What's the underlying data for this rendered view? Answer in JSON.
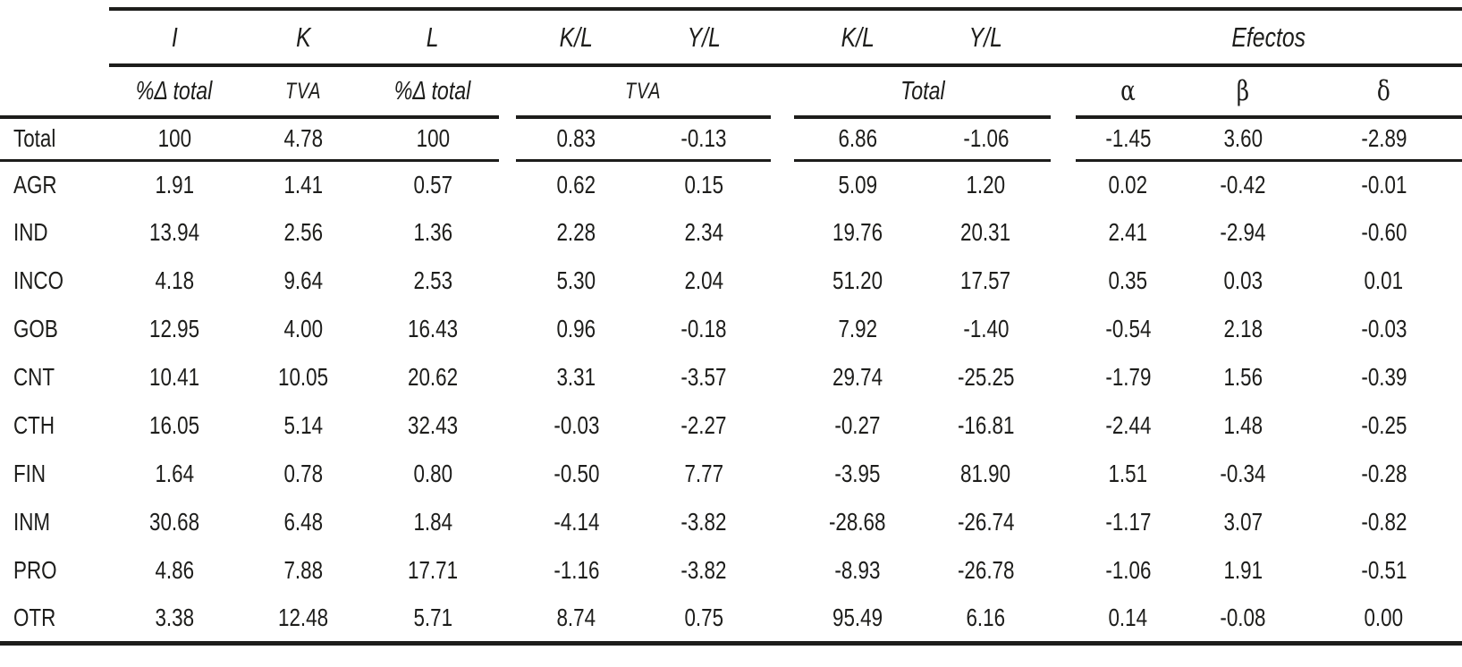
{
  "table": {
    "header_row1": {
      "i": "I",
      "k": "K",
      "l": "L",
      "kl_tva": "K/L",
      "yl_tva": "Y/L",
      "kl_total": "K/L",
      "yl_total": "Y/L",
      "efectos": "Efectos"
    },
    "header_row2": {
      "pct_delta_total_i": "%Δ total",
      "tva_k": "TVA",
      "pct_delta_total_l": "%Δ total",
      "tva_group": "TVA",
      "total_group": "Total",
      "alpha": "α",
      "beta": "β",
      "delta": "δ"
    },
    "rows": [
      {
        "label": "Total",
        "values": [
          "100",
          "4.78",
          "100",
          "0.83",
          "-0.13",
          "6.86",
          "-1.06",
          "-1.45",
          "3.60",
          "-2.89"
        ]
      },
      {
        "label": "AGR",
        "values": [
          "1.91",
          "1.41",
          "0.57",
          "0.62",
          "0.15",
          "5.09",
          "1.20",
          "0.02",
          "-0.42",
          "-0.01"
        ]
      },
      {
        "label": "IND",
        "values": [
          "13.94",
          "2.56",
          "1.36",
          "2.28",
          "2.34",
          "19.76",
          "20.31",
          "2.41",
          "-2.94",
          "-0.60"
        ]
      },
      {
        "label": "INCO",
        "values": [
          "4.18",
          "9.64",
          "2.53",
          "5.30",
          "2.04",
          "51.20",
          "17.57",
          "0.35",
          "0.03",
          "0.01"
        ]
      },
      {
        "label": "GOB",
        "values": [
          "12.95",
          "4.00",
          "16.43",
          "0.96",
          "-0.18",
          "7.92",
          "-1.40",
          "-0.54",
          "2.18",
          "-0.03"
        ]
      },
      {
        "label": "CNT",
        "values": [
          "10.41",
          "10.05",
          "20.62",
          "3.31",
          "-3.57",
          "29.74",
          "-25.25",
          "-1.79",
          "1.56",
          "-0.39"
        ]
      },
      {
        "label": "CTH",
        "values": [
          "16.05",
          "5.14",
          "32.43",
          "-0.03",
          "-2.27",
          "-0.27",
          "-16.81",
          "-2.44",
          "1.48",
          "-0.25"
        ]
      },
      {
        "label": "FIN",
        "values": [
          "1.64",
          "0.78",
          "0.80",
          "-0.50",
          "7.77",
          "-3.95",
          "81.90",
          "1.51",
          "-0.34",
          "-0.28"
        ]
      },
      {
        "label": "INM",
        "values": [
          "30.68",
          "6.48",
          "1.84",
          "-4.14",
          "-3.82",
          "-28.68",
          "-26.74",
          "-1.17",
          "3.07",
          "-0.82"
        ]
      },
      {
        "label": "PRO",
        "values": [
          "4.86",
          "7.88",
          "17.71",
          "-1.16",
          "-3.82",
          "-8.93",
          "-26.78",
          "-1.06",
          "1.91",
          "-0.51"
        ]
      },
      {
        "label": "OTR",
        "values": [
          "3.38",
          "12.48",
          "5.71",
          "8.74",
          "0.75",
          "95.49",
          "6.16",
          "0.14",
          "-0.08",
          "0.00"
        ]
      }
    ]
  },
  "colors": {
    "text": "#1d1d1b",
    "rule": "#1d1d1b",
    "background": "#ffffff"
  }
}
